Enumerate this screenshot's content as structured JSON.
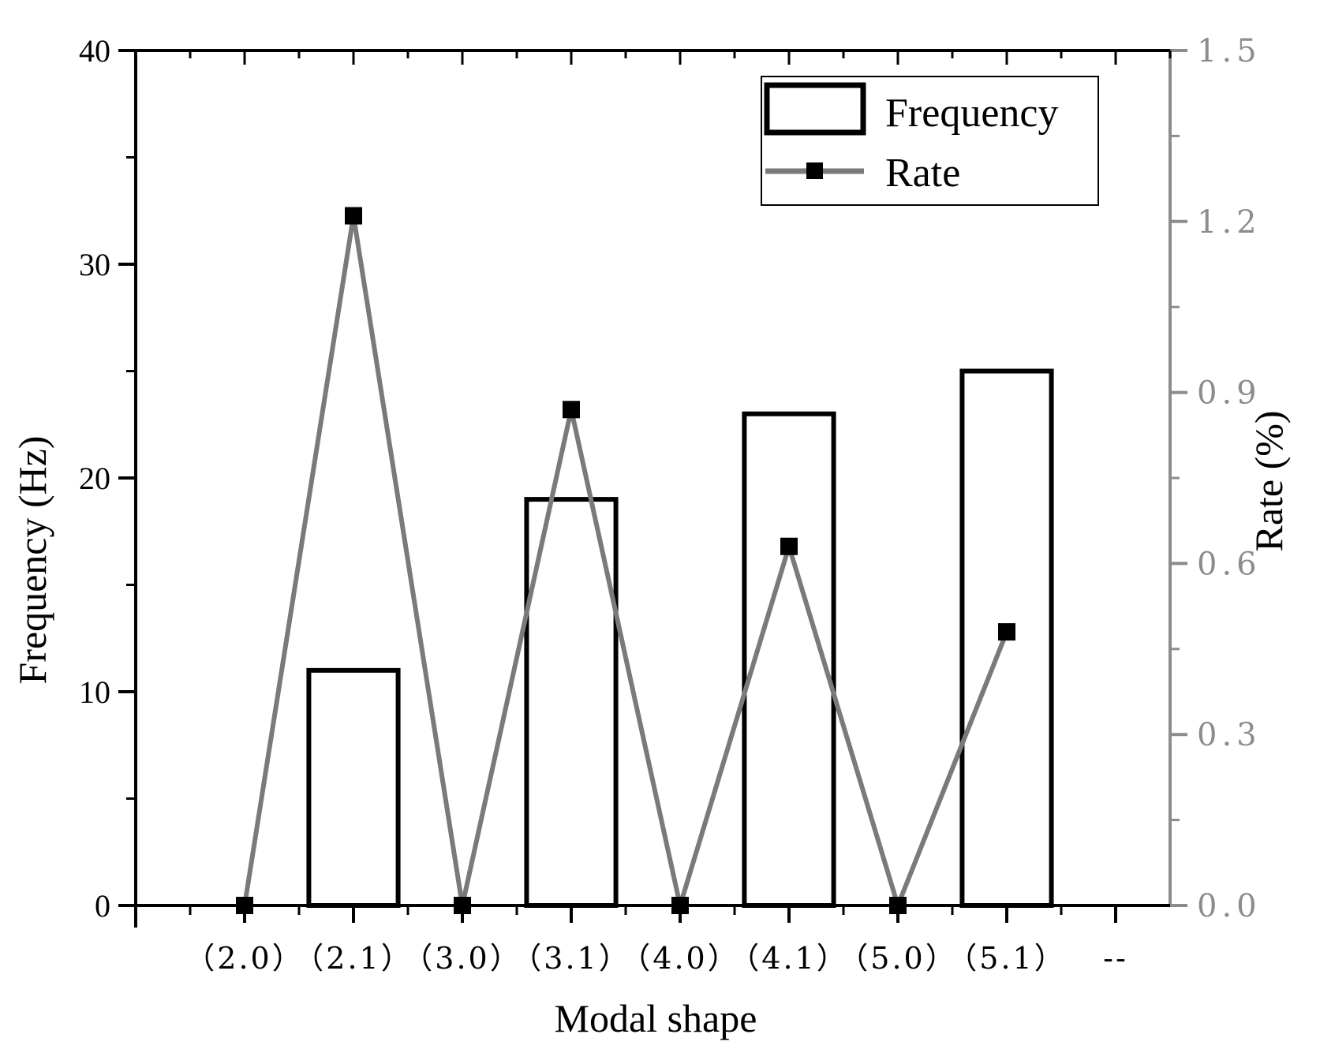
{
  "chart_data": {
    "type": "bar",
    "xlabel": "Modal shape",
    "categories": [
      "（2.0）",
      "（2.1）",
      "（3.0）",
      "（3.1）",
      "（4.0）",
      "（4.1）",
      "（5.0）",
      "（5.1）",
      "--"
    ],
    "left_axis": {
      "label": "Frequency (Hz)",
      "ylim": [
        0,
        40
      ],
      "ticks": [
        "0",
        "10",
        "20",
        "30",
        "40"
      ]
    },
    "right_axis": {
      "label": "Rate (%)",
      "ylim": [
        0,
        1.5
      ],
      "ticks": [
        "0.0",
        "0.3",
        "0.6",
        "0.9",
        "1.2",
        "1.5"
      ]
    },
    "series": [
      {
        "name": "Frequency",
        "type": "bar",
        "axis": "left",
        "values": [
          0,
          11,
          0,
          19,
          0,
          23,
          0,
          25,
          null
        ]
      },
      {
        "name": "Rate",
        "type": "line",
        "axis": "right",
        "values": [
          0,
          1.21,
          0,
          0.87,
          0,
          0.63,
          0,
          0.48,
          null
        ]
      }
    ],
    "legend": {
      "placement": "top-right",
      "entries": [
        "Frequency",
        "Rate"
      ]
    },
    "colors": {
      "bars": "#000000",
      "rate_line": "#7a7a7a",
      "rate_marker": "#000000",
      "right_axis": "#8c8c8c"
    },
    "grid": false
  }
}
